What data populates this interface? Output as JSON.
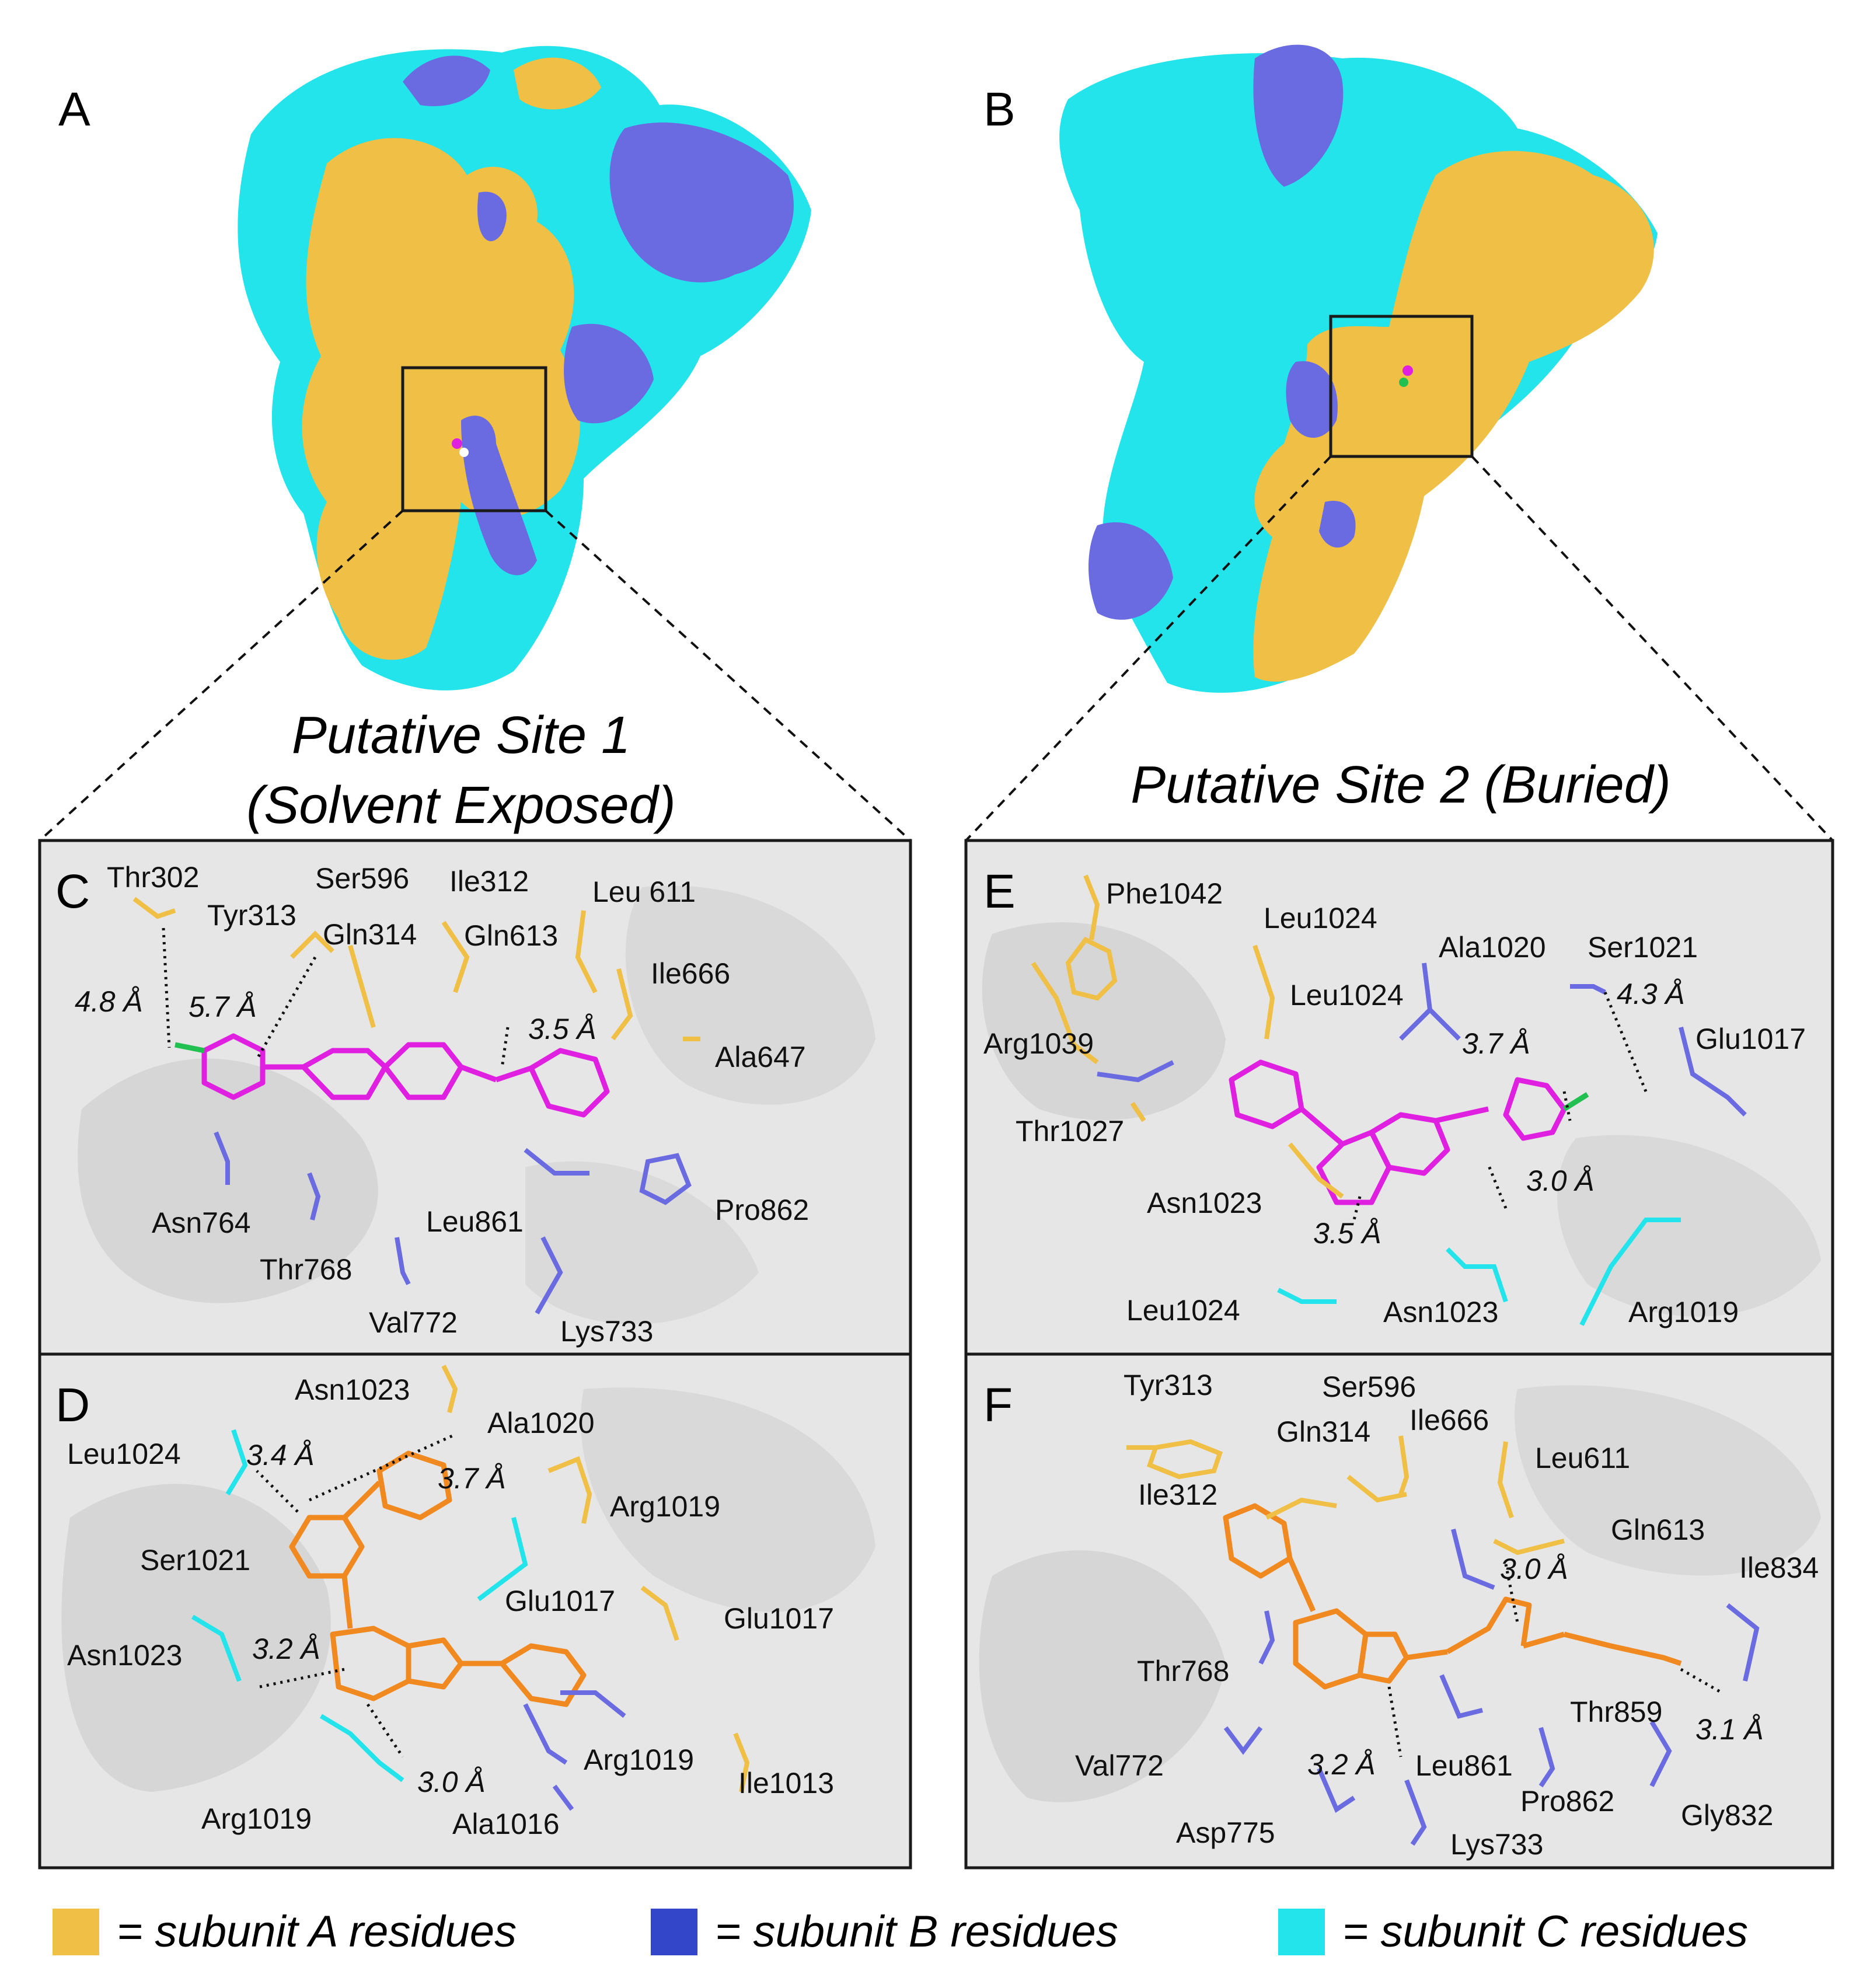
{
  "colors": {
    "subunit_a": "#f0bf45",
    "subunit_b": "#6a6be0",
    "subunit_c": "#22e4ea",
    "ligand_site1": "#e020e0",
    "ligand_site2": "#f08a20",
    "background_panel": "#e6e6e6"
  },
  "panel_a": {
    "letter": "A"
  },
  "panel_b": {
    "letter": "B"
  },
  "site1": {
    "title_line1": "Putative Site 1",
    "title_line2": "(Solvent Exposed)"
  },
  "site2": {
    "title": "Putative Site 2 (Buried)"
  },
  "panel_c": {
    "letter": "C",
    "residues": [
      "Thr302",
      "Tyr313",
      "Ser596",
      "Ile312",
      "Leu 611",
      "Gln314",
      "Gln613",
      "Ile666",
      "Ala647",
      "Asn764",
      "Thr768",
      "Val772",
      "Leu861",
      "Pro862",
      "Lys733"
    ],
    "distances": [
      "4.8 Å",
      "5.7 Å",
      "3.5 Å"
    ]
  },
  "panel_d": {
    "letter": "D",
    "residues": [
      "Asn1023",
      "Ala1020",
      "Leu1024",
      "Arg1019",
      "Ser1021",
      "Glu1017",
      "Glu1017",
      "Asn1023",
      "Arg1019",
      "Ile1013",
      "Arg1019",
      "Ala1016"
    ],
    "distances": [
      "3.4 Å",
      "3.7 Å",
      "3.2 Å",
      "3.0 Å"
    ]
  },
  "panel_e": {
    "letter": "E",
    "residues": [
      "Phe1042",
      "Leu1024",
      "Ala1020",
      "Ser1021",
      "Leu1024",
      "Arg1039",
      "Glu1017",
      "Thr1027",
      "Asn1023",
      "Leu1024",
      "Asn1023",
      "Arg1019"
    ],
    "distances": [
      "4.3 Å",
      "3.7 Å",
      "3.0 Å",
      "3.5 Å"
    ]
  },
  "panel_f": {
    "letter": "F",
    "residues": [
      "Tyr313",
      "Ser596",
      "Gln314",
      "Ile666",
      "Leu611",
      "Ile312",
      "Gln613",
      "Ile834",
      "Thr768",
      "Thr859",
      "Val772",
      "Leu861",
      "Pro862",
      "Asp775",
      "Lys733",
      "Gly832"
    ],
    "distances": [
      "3.0 Å",
      "3.2 Å",
      "3.1 Å"
    ]
  },
  "legend": [
    {
      "label": "= subunit A residues",
      "color": "#f0bf45"
    },
    {
      "label": "= subunit B residues",
      "color": "#3346c9"
    },
    {
      "label": "= subunit C residues",
      "color": "#22e4ea"
    }
  ]
}
